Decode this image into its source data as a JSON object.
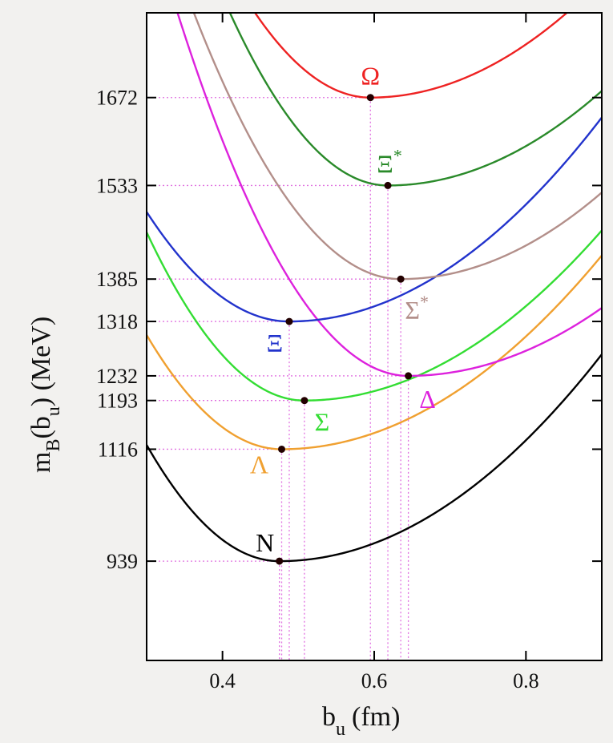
{
  "chart_data": {
    "type": "line",
    "xlabel": "b",
    "xlabel_sub": "u",
    "xlabel_unit": "(fm)",
    "ylabel": "m",
    "ylabel_sub1": "B",
    "ylabel_mid": "(b",
    "ylabel_sub2": "u",
    "ylabel_unit": ") (MeV)",
    "xlim": [
      0.3,
      0.9
    ],
    "ylim": [
      782,
      1806
    ],
    "xticks": [
      {
        "value": 0.4,
        "label": "0.4"
      },
      {
        "value": 0.6,
        "label": "0.6"
      },
      {
        "value": 0.8,
        "label": "0.8"
      }
    ],
    "yticks": [
      {
        "value": 939,
        "label": "939"
      },
      {
        "value": 1116,
        "label": "1116"
      },
      {
        "value": 1193,
        "label": "1193"
      },
      {
        "value": 1232,
        "label": "1232"
      },
      {
        "value": 1318,
        "label": "1318"
      },
      {
        "value": 1385,
        "label": "1385"
      },
      {
        "value": 1533,
        "label": "1533"
      },
      {
        "value": 1672,
        "label": "1672"
      }
    ],
    "grid": false,
    "guide_line_color": "#e070e0",
    "series": [
      {
        "name": "N",
        "label": "N",
        "color": "#000000",
        "min_x": 0.475,
        "min_y": 939,
        "k_left": 6000,
        "k_right": 1810
      },
      {
        "name": "Λ",
        "label": "Λ",
        "color": "#f0a030",
        "min_x": 0.478,
        "min_y": 1116,
        "k_left": 5700,
        "k_right": 1720
      },
      {
        "name": "Σ",
        "label": "Σ",
        "color": "#33dd33",
        "min_x": 0.508,
        "min_y": 1193,
        "k_left": 6150,
        "k_right": 1750
      },
      {
        "name": "Δ",
        "label": "Δ",
        "color": "#dd22dd",
        "min_x": 0.645,
        "min_y": 1232,
        "k_left": 6200,
        "k_right": 1650
      },
      {
        "name": "Ξ",
        "label": "Ξ",
        "color": "#2233cc",
        "min_x": 0.488,
        "min_y": 1318,
        "k_left": 4900,
        "k_right": 1900
      },
      {
        "name": "Σ*",
        "label": "Σ",
        "label_sup": "*",
        "color": "#b38f8a",
        "min_x": 0.635,
        "min_y": 1385,
        "k_left": 5660,
        "k_right": 1950
      },
      {
        "name": "Ξ*",
        "label": "Ξ",
        "label_sup": "*",
        "color": "#2a8a2a",
        "min_x": 0.618,
        "min_y": 1533,
        "k_left": 6300,
        "k_right": 1880
      },
      {
        "name": "Ω",
        "label": "Ω",
        "color": "#ee2222",
        "min_x": 0.595,
        "min_y": 1672,
        "k_left": 5800,
        "k_right": 2000
      }
    ]
  }
}
